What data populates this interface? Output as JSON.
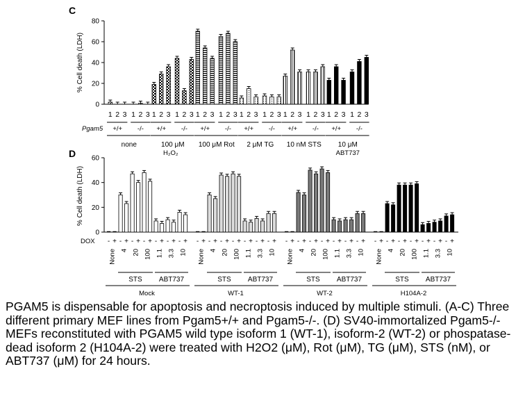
{
  "chart_data": [
    {
      "type": "bar",
      "panel_label": "C",
      "ylabel": "% Cell death (LDH)",
      "ylim": [
        0,
        80
      ],
      "yticks": [
        "0",
        "20",
        "40",
        "60",
        "80"
      ],
      "row_label": "Pgam5",
      "lane_labels": [
        "1",
        "2",
        "3",
        "1",
        "2",
        "3"
      ],
      "genotype_labels": [
        "+/+",
        "-/-"
      ],
      "groups": [
        {
          "name": "none",
          "name_line2": "",
          "pattern": "hatch",
          "values": [
            2,
            0,
            0,
            0,
            1,
            0
          ]
        },
        {
          "name": "100 μM",
          "name_line2": "H₂O₂",
          "pattern": "checker",
          "values": [
            19,
            29,
            36,
            44,
            13,
            43
          ]
        },
        {
          "name": "100 μM Rot",
          "name_line2": "",
          "pattern": "hstripe",
          "values": [
            70,
            54,
            44,
            65,
            68,
            60
          ]
        },
        {
          "name": "2 μM TG",
          "name_line2": "",
          "pattern": "dots",
          "values": [
            6,
            15,
            7,
            8,
            7,
            7
          ]
        },
        {
          "name": "10 nM STS",
          "name_line2": "",
          "pattern": "vstripe",
          "values": [
            27,
            52,
            31,
            31,
            31,
            36
          ]
        },
        {
          "name": "10 μM",
          "name_line2": "ABT737",
          "pattern": "solid",
          "values": [
            23,
            36,
            23,
            31,
            41,
            45
          ]
        }
      ]
    },
    {
      "type": "bar",
      "panel_label": "D",
      "ylabel": "% Cell death (LDH)",
      "ylim": [
        0,
        60
      ],
      "yticks": [
        "0",
        "20",
        "40",
        "60"
      ],
      "row_label": "DOX",
      "dox_labels": [
        "-",
        "+",
        "-",
        "+",
        "-",
        "+",
        "-",
        "+",
        "-",
        "+",
        "-",
        "+",
        "-",
        "+"
      ],
      "dose_labels": [
        "None",
        "4",
        "20",
        "100",
        "1.1",
        "3.3",
        "10"
      ],
      "treatment_labels": [
        "STS",
        "ABT737"
      ],
      "groups": [
        {
          "name": "Mock",
          "color": "#ffffff",
          "values": [
            0,
            0,
            30,
            23,
            47,
            40,
            48,
            41,
            9,
            7,
            10,
            8,
            16,
            14
          ]
        },
        {
          "name": "WT-1",
          "color": "#dcdcdc",
          "values": [
            0,
            0,
            30,
            27,
            46,
            45,
            47,
            45,
            9,
            8,
            11,
            9,
            15,
            15
          ]
        },
        {
          "name": "WT-2",
          "color": "#7a7a7a",
          "values": [
            0,
            0,
            32,
            30,
            50,
            47,
            51,
            48,
            10,
            9,
            10,
            10,
            15,
            15
          ]
        },
        {
          "name": "H104A-2",
          "color": "#000000",
          "values": [
            0,
            0,
            23,
            22,
            38,
            38,
            38,
            39,
            6,
            7,
            8,
            9,
            13,
            14
          ]
        }
      ]
    }
  ],
  "caption": "PGAM5 is dispensable for apoptosis and necroptosis induced by multiple stimuli. (A-C) Three different primary MEF lines from Pgam5+/+ and Pgam5-/-. (D) SV40-immortalized Pgam5-/-MEFs reconstituted with PGAM5 wild type isoform 1 (WT-1), isoform-2 (WT-2) or phospatase-dead isoform 2 (H104A-2) were treated with H2O2 (μM), Rot (μM), TG (μM), STS (nM), or ABT737 (μM) for 24 hours."
}
